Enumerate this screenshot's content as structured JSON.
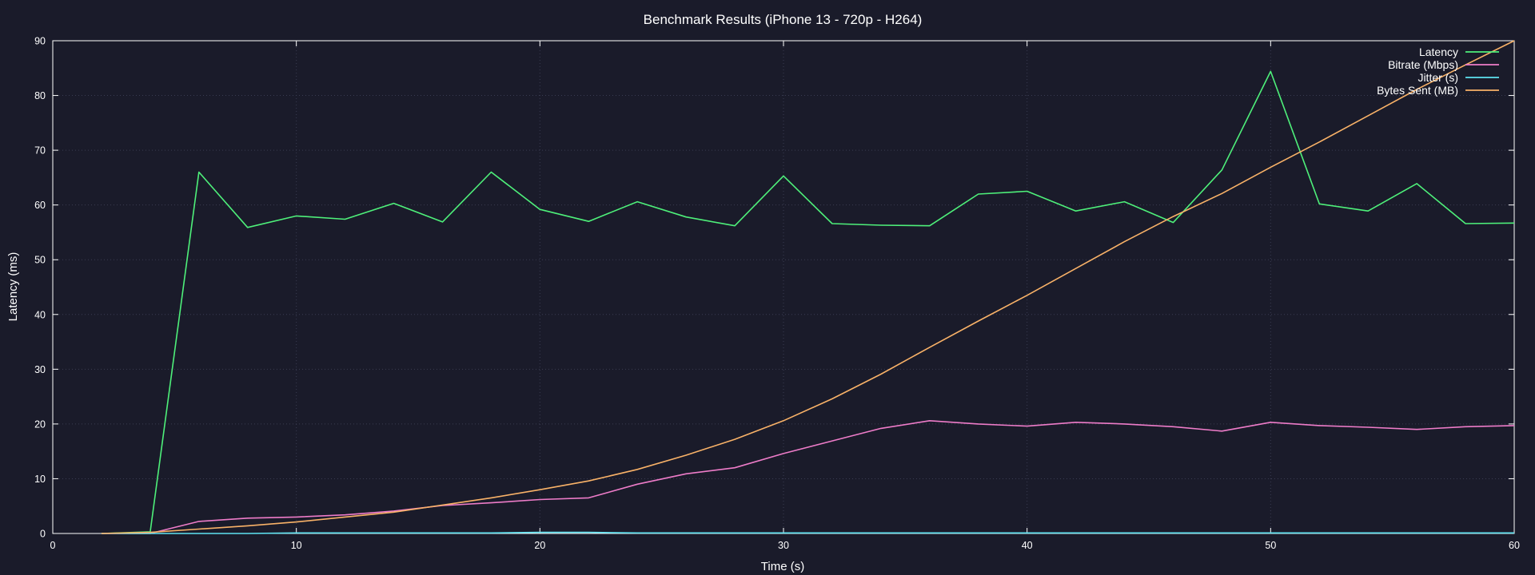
{
  "chart_data": {
    "type": "line",
    "title": "Benchmark Results (iPhone 13 - 720p - H264)",
    "xlabel": "Time (s)",
    "ylabel": "Latency (ms)",
    "xlim": [
      0,
      60
    ],
    "ylim": [
      0,
      90
    ],
    "xticks": [
      0,
      10,
      20,
      30,
      40,
      50,
      60
    ],
    "yticks": [
      0,
      10,
      20,
      30,
      40,
      50,
      60,
      70,
      80,
      90
    ],
    "grid": true,
    "legend_position": "top-right",
    "x": [
      2,
      4,
      6,
      8,
      10,
      12,
      14,
      16,
      18,
      20,
      22,
      24,
      26,
      28,
      30,
      32,
      34,
      36,
      38,
      40,
      42,
      44,
      46,
      48,
      50,
      52,
      54,
      56,
      58,
      60
    ],
    "series": [
      {
        "name": "Latency",
        "color": "#4ef07a",
        "values": [
          0,
          0.3,
          66,
          55.9,
          58,
          57.4,
          60.3,
          56.9,
          66,
          59.2,
          57,
          60.6,
          57.8,
          56.2,
          65.3,
          56.6,
          56.3,
          56.2,
          62,
          62.5,
          58.9,
          60.6,
          56.8,
          66.4,
          84.4,
          60.2,
          58.9,
          63.9,
          56.6,
          56.7
        ]
      },
      {
        "name": "Bitrate (Mbps)",
        "color": "#ee7cc9",
        "values": [
          0,
          0,
          2.2,
          2.8,
          3,
          3.4,
          4.1,
          5.1,
          5.6,
          6.2,
          6.5,
          9,
          10.9,
          12,
          14.6,
          16.9,
          19.2,
          20.6,
          20,
          19.6,
          20.3,
          20,
          19.5,
          18.7,
          20.3,
          19.7,
          19.4,
          19,
          19.5,
          19.7
        ]
      },
      {
        "name": "Jitter (s)",
        "color": "#5ee3f1",
        "values": [
          0,
          0,
          0,
          0,
          0.1,
          0.1,
          0.1,
          0.1,
          0.1,
          0.2,
          0.2,
          0.1,
          0.1,
          0.1,
          0.1,
          0.1,
          0.1,
          0.1,
          0.1,
          0.1,
          0.1,
          0.1,
          0.1,
          0.1,
          0.1,
          0.1,
          0.1,
          0.1,
          0.1,
          0.1
        ]
      },
      {
        "name": "Bytes Sent (MB)",
        "color": "#f9b268",
        "values": [
          0,
          0.2,
          0.8,
          1.4,
          2.1,
          3,
          3.9,
          5.2,
          6.5,
          8,
          9.6,
          11.7,
          14.3,
          17.2,
          20.6,
          24.6,
          29.1,
          34,
          38.8,
          43.5,
          48.4,
          53.3,
          57.9,
          62.1,
          66.9,
          71.5,
          76.3,
          81.1,
          85.6,
          90
        ]
      }
    ]
  }
}
